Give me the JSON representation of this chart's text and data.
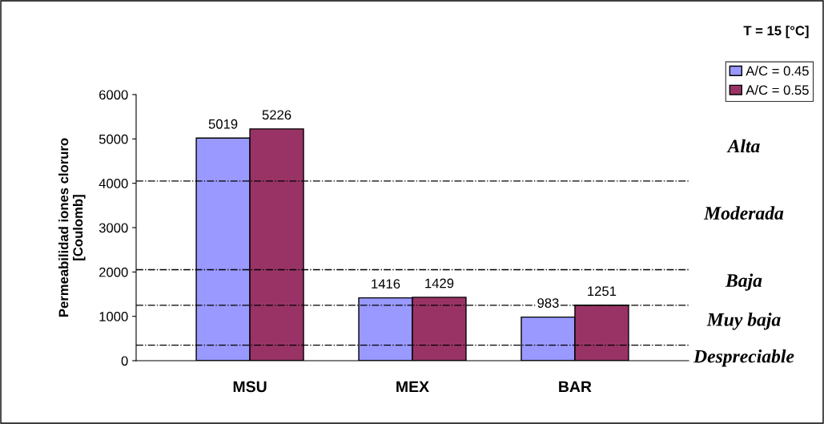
{
  "chart_data": {
    "type": "bar",
    "ylabel": "Permeabilidad iones cloruro\n[Coulomb]",
    "categories": [
      "MSU",
      "MEX",
      "BAR"
    ],
    "series": [
      {
        "name": "A/C = 0.45",
        "color": "#9999ff",
        "values": [
          5019,
          1416,
          983
        ]
      },
      {
        "name": "A/C = 0.55",
        "color": "#993366",
        "values": [
          5226,
          1429,
          1251
        ]
      }
    ],
    "data_labels": true,
    "ylim": [
      0,
      6000
    ],
    "yticks": [
      0,
      1000,
      2000,
      3000,
      4000,
      5000,
      6000
    ],
    "grid": false,
    "legend": "top right",
    "legend_title": "T = 15 [°C]",
    "ref_lines": [
      {
        "axis": "y",
        "value": 4050,
        "line_style": "dashdot",
        "color": "#000000"
      },
      {
        "axis": "y",
        "value": 2050,
        "line_style": "dashdot",
        "color": "#000000"
      },
      {
        "axis": "y",
        "value": 1250,
        "line_style": "dashdot",
        "color": "#000000"
      },
      {
        "axis": "y",
        "value": 350,
        "line_style": "dashdot",
        "color": "#000000"
      }
    ],
    "annotations": [
      "Alta",
      "Moderada",
      "Baja",
      "Muy baja",
      "Despreciable"
    ]
  }
}
